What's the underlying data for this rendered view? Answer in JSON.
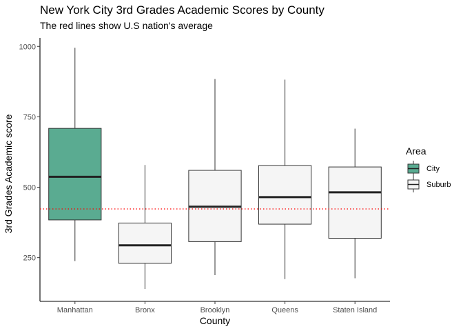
{
  "chart_data": {
    "type": "boxplot",
    "title": "New York City 3rd Grades Academic Scores by County",
    "subtitle": "The red lines show U.S nation's average",
    "xlabel": "County",
    "ylabel": "3rd Grades Academic score",
    "ylim": [
      95,
      1030
    ],
    "yticks": [
      250,
      500,
      750,
      1000
    ],
    "categories": [
      "Manhattan",
      "Bronx",
      "Brooklyn",
      "Queens",
      "Staten Island"
    ],
    "boxes": [
      {
        "category": "Manhattan",
        "area": "City",
        "min": 238,
        "q1": 384,
        "median": 537,
        "q3": 709,
        "max": 995
      },
      {
        "category": "Bronx",
        "area": "Suburb",
        "min": 139,
        "q1": 230,
        "median": 294,
        "q3": 373,
        "max": 579
      },
      {
        "category": "Brooklyn",
        "area": "Suburb",
        "min": 188,
        "q1": 307,
        "median": 431,
        "q3": 560,
        "max": 884
      },
      {
        "category": "Queens",
        "area": "Suburb",
        "min": 174,
        "q1": 369,
        "median": 465,
        "q3": 577,
        "max": 882
      },
      {
        "category": "Staten Island",
        "area": "Suburb",
        "min": 177,
        "q1": 319,
        "median": 482,
        "q3": 572,
        "max": 708
      }
    ],
    "reference_line": {
      "value": 423,
      "color": "#ff0000",
      "style": "dotted"
    },
    "legend": {
      "title": "Area",
      "position": "right",
      "items": [
        {
          "label": "City",
          "color": "#5aab91"
        },
        {
          "label": "Suburb",
          "color": "#f5f5f5"
        }
      ]
    },
    "grid": false
  }
}
